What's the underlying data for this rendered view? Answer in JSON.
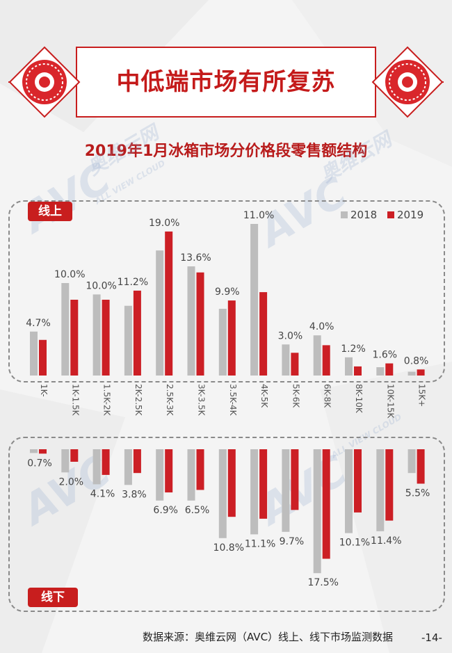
{
  "banner": {
    "title": "中低端市场有所复苏"
  },
  "chart_title": "2019年1月冰箱市场分价格段零售额结构",
  "watermark": {
    "logo": "AVC",
    "cn": "奥维云网",
    "en": "ALL VIEW CLOUD"
  },
  "colors": {
    "accent": "#c81e1e",
    "y2018": "#bdbdbd",
    "y2019": "#cc1f25"
  },
  "legend": {
    "s2018": "2018",
    "s2019": "2019"
  },
  "source": "数据来源：奥维云网（AVC）线上、线下市场监测数据",
  "page_number": "-14-",
  "chart_data": [
    {
      "type": "bar",
      "panel_label": "线上",
      "categories": [
        "1K-",
        "1K-1.5K",
        "1.5K-2K",
        "2K-2.5K",
        "2.5K-3K",
        "3K-3.5K",
        "3.5K-4K",
        "4K-5K",
        "5K-6K",
        "6K-8K",
        "8K-10K",
        "10K-15K",
        "15K+"
      ],
      "series": [
        {
          "name": "2018",
          "values": [
            5.8,
            12.2,
            10.7,
            9.2,
            16.5,
            14.4,
            8.8,
            20.0,
            4.1,
            5.3,
            2.4,
            1.1,
            0.5
          ]
        },
        {
          "name": "2019",
          "values": [
            4.7,
            10.0,
            10.0,
            11.2,
            19.0,
            13.6,
            9.9,
            11.0,
            3.0,
            4.0,
            1.2,
            1.6,
            0.8
          ]
        }
      ],
      "labels": [
        "4.7%",
        "10.0%",
        "10.0%",
        "11.2%",
        "19.0%",
        "13.6%",
        "9.9%",
        "11.0%",
        "3.0%",
        "4.0%",
        "1.2%",
        "1.6%",
        "0.8%"
      ],
      "ylim": [
        0,
        20
      ]
    },
    {
      "type": "bar",
      "panel_label": "线下",
      "categories": [
        "1K-",
        "1K-1.5K",
        "1.5K-2K",
        "2K-2.5K",
        "2.5K-3K",
        "3K-3.5K",
        "3.5K-4K",
        "4K-5K",
        "5K-6K",
        "6K-8K",
        "8K-10K",
        "10K-15K",
        "15K+"
      ],
      "series": [
        {
          "name": "2018",
          "values": [
            0.6,
            3.7,
            5.6,
            5.7,
            8.2,
            8.2,
            14.2,
            13.6,
            13.2,
            19.8,
            13.4,
            13.1,
            3.8
          ]
        },
        {
          "name": "2019",
          "values": [
            0.7,
            2.0,
            4.1,
            3.8,
            6.9,
            6.5,
            10.8,
            11.1,
            9.7,
            17.5,
            10.1,
            11.4,
            5.5
          ]
        }
      ],
      "labels": [
        "0.7%",
        "2.0%",
        "4.1%",
        "3.8%",
        "6.9%",
        "6.5%",
        "10.8%",
        "11.1%",
        "9.7%",
        "17.5%",
        "10.1%",
        "11.4%",
        "5.5%"
      ],
      "ylim": [
        0,
        20
      ]
    }
  ]
}
